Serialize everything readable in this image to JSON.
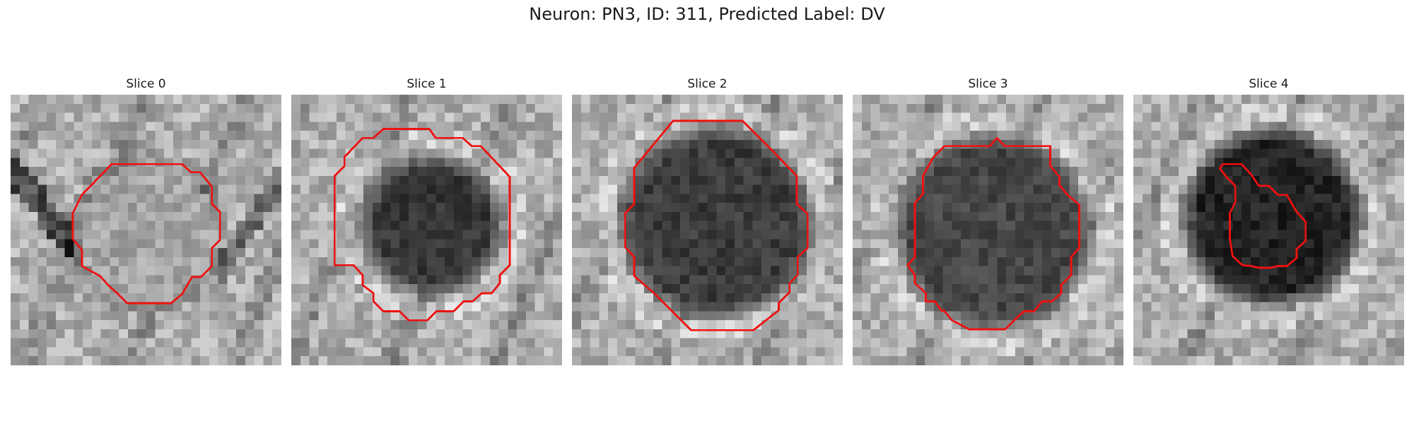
{
  "title": "Neuron: PN3, ID: 311, Predicted Label: DV",
  "panels": [
    {
      "title": "Slice 0",
      "cell_tone": "light",
      "contour_color": "#ee1111"
    },
    {
      "title": "Slice 1",
      "cell_tone": "dark",
      "contour_color": "#ee1111"
    },
    {
      "title": "Slice 2",
      "cell_tone": "dark",
      "contour_color": "#ee1111"
    },
    {
      "title": "Slice 3",
      "cell_tone": "dark",
      "contour_color": "#ee1111"
    },
    {
      "title": "Slice 4",
      "cell_tone": "dark",
      "contour_color": "#ee1111"
    }
  ]
}
